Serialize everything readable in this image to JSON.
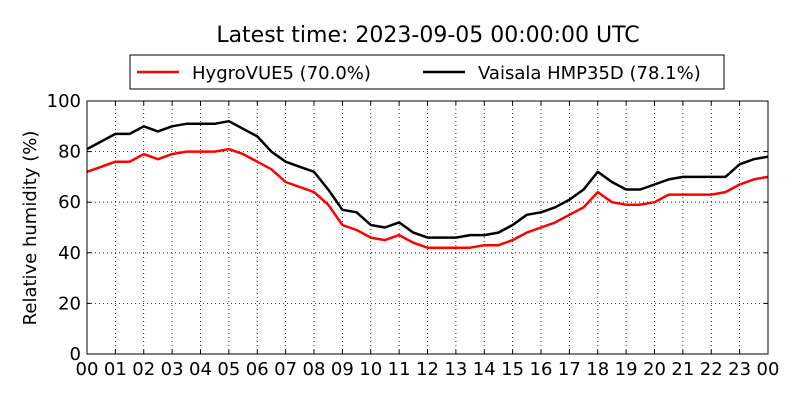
{
  "chart_data": {
    "type": "line",
    "title": "Latest time: 2023-09-05 00:00:00 UTC",
    "xlabel": "",
    "ylabel": "Relative humidity (%)",
    "xlim": [
      0,
      24
    ],
    "ylim": [
      0,
      100
    ],
    "grid": true,
    "legend_position": "top-center",
    "x_ticks": [
      "00",
      "01",
      "02",
      "03",
      "04",
      "05",
      "06",
      "07",
      "08",
      "09",
      "10",
      "11",
      "12",
      "13",
      "14",
      "15",
      "16",
      "17",
      "18",
      "19",
      "20",
      "21",
      "22",
      "23",
      "00"
    ],
    "y_ticks": [
      0,
      20,
      40,
      60,
      80,
      100
    ],
    "x": [
      0,
      0.5,
      1,
      1.5,
      2,
      2.5,
      3,
      3.5,
      4,
      4.5,
      5,
      5.5,
      6,
      6.5,
      7,
      7.5,
      8,
      8.5,
      9,
      9.5,
      10,
      10.5,
      11,
      11.5,
      12,
      12.5,
      13,
      13.5,
      14,
      14.5,
      15,
      15.5,
      16,
      16.5,
      17,
      17.5,
      18,
      18.5,
      19,
      19.5,
      20,
      20.5,
      21,
      21.5,
      22,
      22.5,
      23,
      23.5,
      24
    ],
    "series": [
      {
        "name": "HygroVUE5 (70.0%)",
        "color": "#ff0000",
        "values": [
          72,
          74,
          76,
          76,
          79,
          77,
          79,
          80,
          80,
          80,
          81,
          79,
          76,
          73,
          68,
          66,
          64,
          59,
          51,
          49,
          46,
          45,
          47,
          44,
          42,
          42,
          42,
          42,
          43,
          43,
          45,
          48,
          50,
          52,
          55,
          58,
          64,
          60,
          59,
          59,
          60,
          63,
          63,
          63,
          63,
          64,
          67,
          69,
          70
        ]
      },
      {
        "name": "Vaisala HMP35D (78.1%)",
        "color": "#000000",
        "values": [
          81,
          84,
          87,
          87,
          90,
          88,
          90,
          91,
          91,
          91,
          92,
          89,
          86,
          80,
          76,
          74,
          72,
          65,
          57,
          56,
          51,
          50,
          52,
          48,
          46,
          46,
          46,
          47,
          47,
          48,
          51,
          55,
          56,
          58,
          61,
          65,
          72,
          68,
          65,
          65,
          67,
          69,
          70,
          70,
          70,
          70,
          75,
          77,
          78
        ]
      }
    ]
  }
}
